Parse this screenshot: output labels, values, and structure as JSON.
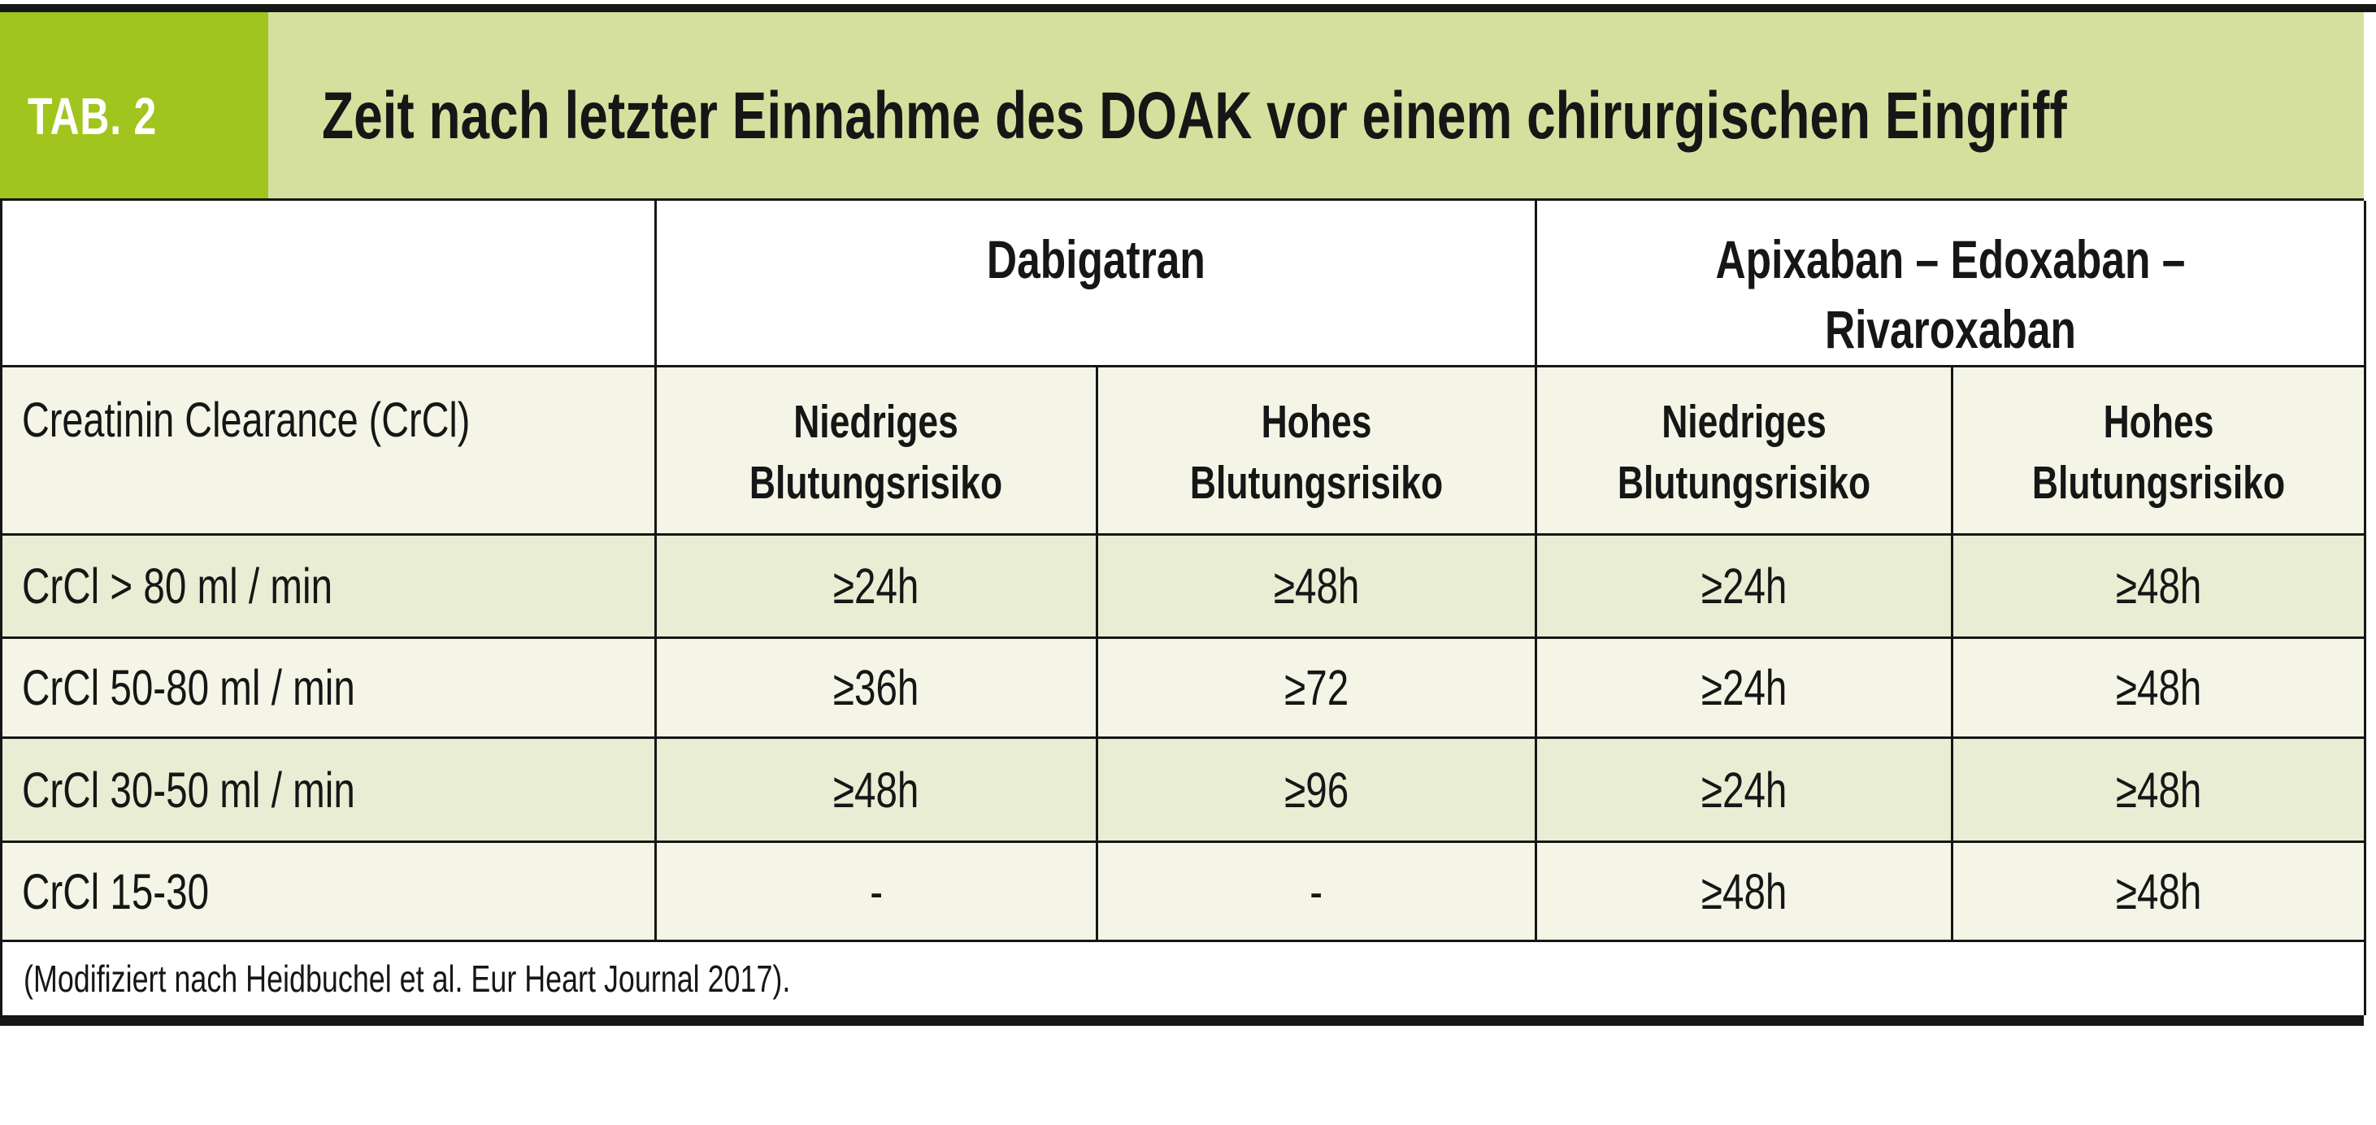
{
  "header": {
    "tab_label": "TAB. 2",
    "title": "Zeit nach letzter Einnahme des DOAK vor einem chirurgischen Eingriff"
  },
  "table": {
    "corner_label": "Creatinin Clearance (CrCl)",
    "group_headers": [
      {
        "label": "Dabigatran"
      },
      {
        "line1": "Apixaban – Edoxaban –",
        "line2": "Rivaroxaban"
      }
    ],
    "sub_headers": [
      {
        "line1": "Niedriges",
        "line2": "Blutungsrisiko"
      },
      {
        "line1": "Hohes",
        "line2": "Blutungsrisiko"
      },
      {
        "line1": "Niedriges",
        "line2": "Blutungsrisiko"
      },
      {
        "line1": "Hohes",
        "line2": "Blutungsrisiko"
      }
    ],
    "rows": [
      {
        "label": "CrCl > 80 ml / min",
        "values": [
          "≥24h",
          "≥48h",
          "≥24h",
          "≥48h"
        ]
      },
      {
        "label": "CrCl 50-80 ml / min",
        "values": [
          "≥36h",
          "≥72",
          "≥24h",
          "≥48h"
        ]
      },
      {
        "label": "CrCl 30-50 ml / min",
        "values": [
          "≥48h",
          "≥96",
          "≥24h",
          "≥48h"
        ]
      },
      {
        "label": "CrCl 15-30",
        "values": [
          "-",
          "-",
          "≥48h",
          "≥48h"
        ]
      }
    ],
    "footnote": "(Modifiziert nach Heidbuchel et al. Eur Heart Journal 2017)."
  },
  "colors": {
    "accent_green": "#a0c51e",
    "band_green": "#d5e09e",
    "row_green": "#e8edd3",
    "row_ivory": "#f4f5e7",
    "rule_black": "#161616"
  }
}
